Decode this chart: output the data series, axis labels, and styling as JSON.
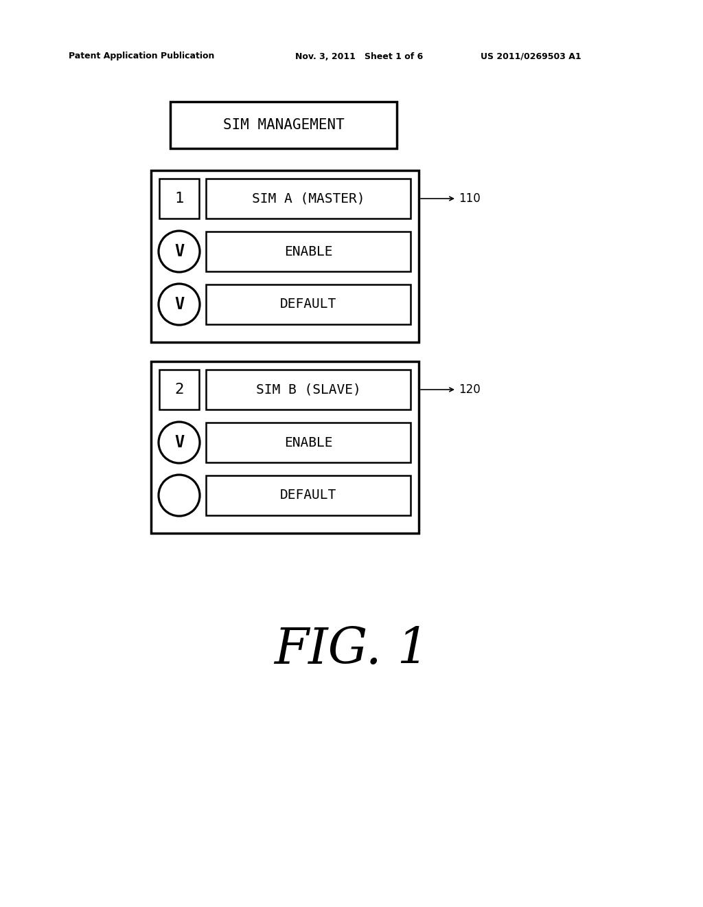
{
  "background_color": "#ffffff",
  "header_left": "Patent Application Publication",
  "header_mid": "Nov. 3, 2011   Sheet 1 of 6",
  "header_right": "US 2011/0269503 A1",
  "title_box_text": "SIM MANAGEMENT",
  "sim_a_label": "1",
  "sim_a_title": "SIM A (MASTER)",
  "sim_a_ref": "110",
  "sim_a_enable": "ENABLE",
  "sim_a_default": "DEFAULT",
  "sim_b_label": "2",
  "sim_b_title": "SIM B (SLAVE)",
  "sim_b_ref": "120",
  "sim_b_enable": "ENABLE",
  "sim_b_default": "DEFAULT",
  "fig_label": "FIG. 1",
  "text_color": "#000000",
  "box_color": "#000000",
  "outer_linewidth": 2.5,
  "inner_linewidth": 1.8
}
